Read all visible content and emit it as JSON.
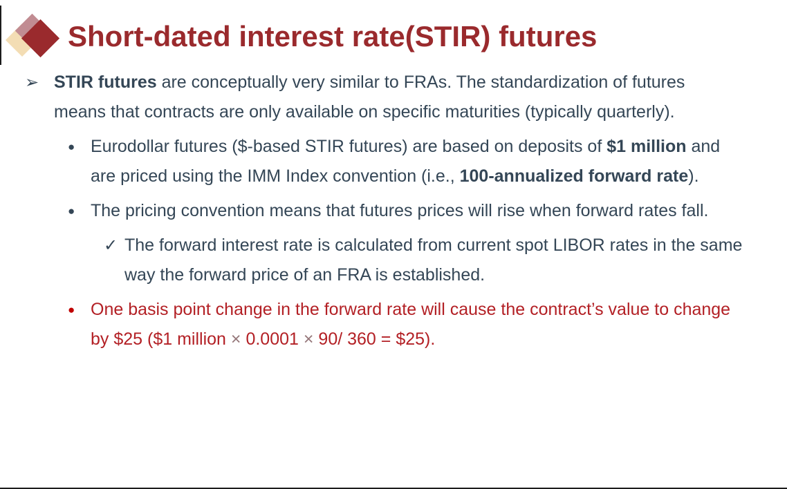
{
  "title": {
    "text": "Short-dated interest rate(STIR) futures",
    "icon_name": "overlapping-diamonds",
    "icon_colors": {
      "back": "#F3DDB4",
      "middle": "#C18C92",
      "front": "#9A2A2D"
    }
  },
  "colors": {
    "title_red": "#9A2A2D",
    "body_navy": "#344656",
    "accent_red": "#B32025",
    "red_bullet": "#C00000"
  },
  "bullets": {
    "main": {
      "marker": "➢",
      "segments": [
        "STIR futures",
        " are conceptually very similar to FRAs. The standardization of futures means that contracts are only available on specific maturities (typically quarterly)."
      ]
    },
    "eurodollar": {
      "marker": "●",
      "segments": [
        "Eurodollar futures ($-based STIR futures) are based on deposits of ",
        "$1 million",
        " and are priced using the IMM Index convention (i.e., ",
        "100-annualized forward rate",
        ")."
      ]
    },
    "pricing": {
      "marker": "●",
      "text": "The pricing convention means that futures prices will rise when forward rates fall."
    },
    "forward_rate": {
      "marker": "✓",
      "text": "The forward interest rate is calculated from current spot LIBOR rates in the same way the forward price of an FRA is established."
    },
    "basis_point": {
      "marker": "●",
      "segments": [
        "One basis point change in the forward rate will cause the contract’s value to change by $25 ($1 million ",
        "×",
        " 0.0001 ",
        "×",
        " 90/ 360 = $25)."
      ]
    }
  }
}
